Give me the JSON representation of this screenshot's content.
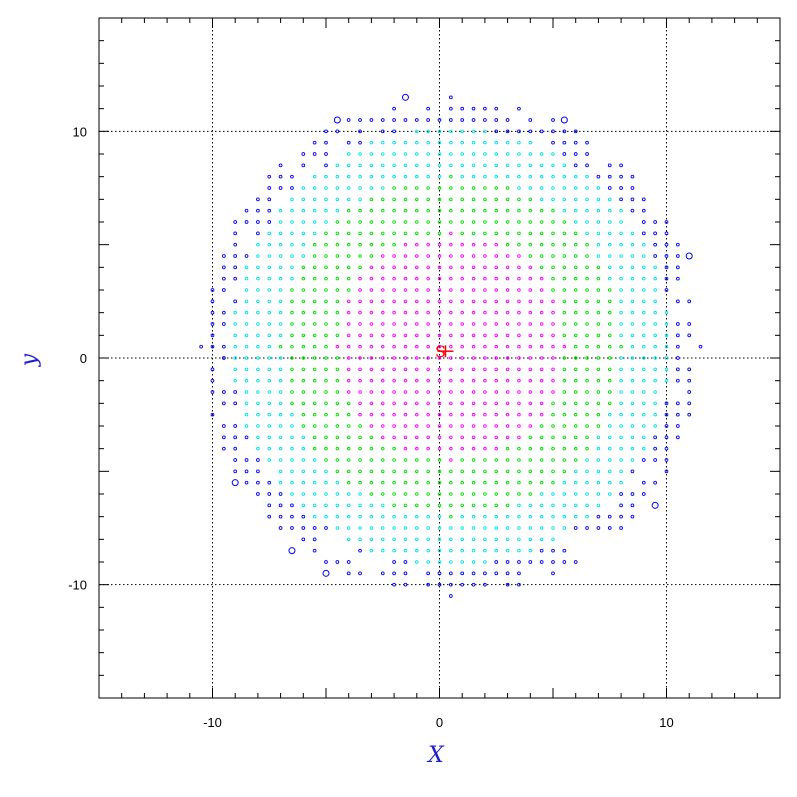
{
  "chart_data": {
    "type": "scatter",
    "title": "",
    "xlabel": "X",
    "ylabel": "y",
    "label_color": "#1f1fd0",
    "xlim": [
      -15,
      15
    ],
    "ylim": [
      -15,
      15
    ],
    "x_ticks": [
      -10,
      0,
      10
    ],
    "y_ticks": [
      -10,
      0,
      10
    ],
    "x_tick_labels": [
      "-10",
      "0",
      "10"
    ],
    "y_tick_labels": [
      "-10",
      "0",
      "10"
    ],
    "minor_tick_step": 1,
    "grid": "dotted at -10, 0, 10",
    "grid_lines": [
      -10,
      0,
      10
    ],
    "grid_color": "#000000",
    "grid_spacing": 0.5,
    "disk_center": [
      0.5,
      0.5
    ],
    "disk_radius": 11.0,
    "rings": [
      {
        "name": "inner",
        "color": "#ff00ff",
        "max_radius": 5.0
      },
      {
        "name": "middle",
        "color": "#00e000",
        "max_radius": 7.5
      },
      {
        "name": "outer",
        "color": "#00e5e5",
        "max_radius": 9.7
      },
      {
        "name": "edge",
        "color": "#0000ff",
        "max_radius": 11.0
      }
    ],
    "edge_large_points": [
      [
        -1.5,
        11.5
      ],
      [
        -4.5,
        10.5
      ],
      [
        5.5,
        10.5
      ],
      [
        11.0,
        4.5
      ],
      [
        -9.0,
        -5.5
      ],
      [
        9.5,
        -6.5
      ],
      [
        -6.5,
        -8.5
      ],
      [
        -5.0,
        -9.5
      ]
    ],
    "marker": {
      "label": "S",
      "position": [
        0.0,
        0.3
      ],
      "color": "#ff0000"
    }
  }
}
